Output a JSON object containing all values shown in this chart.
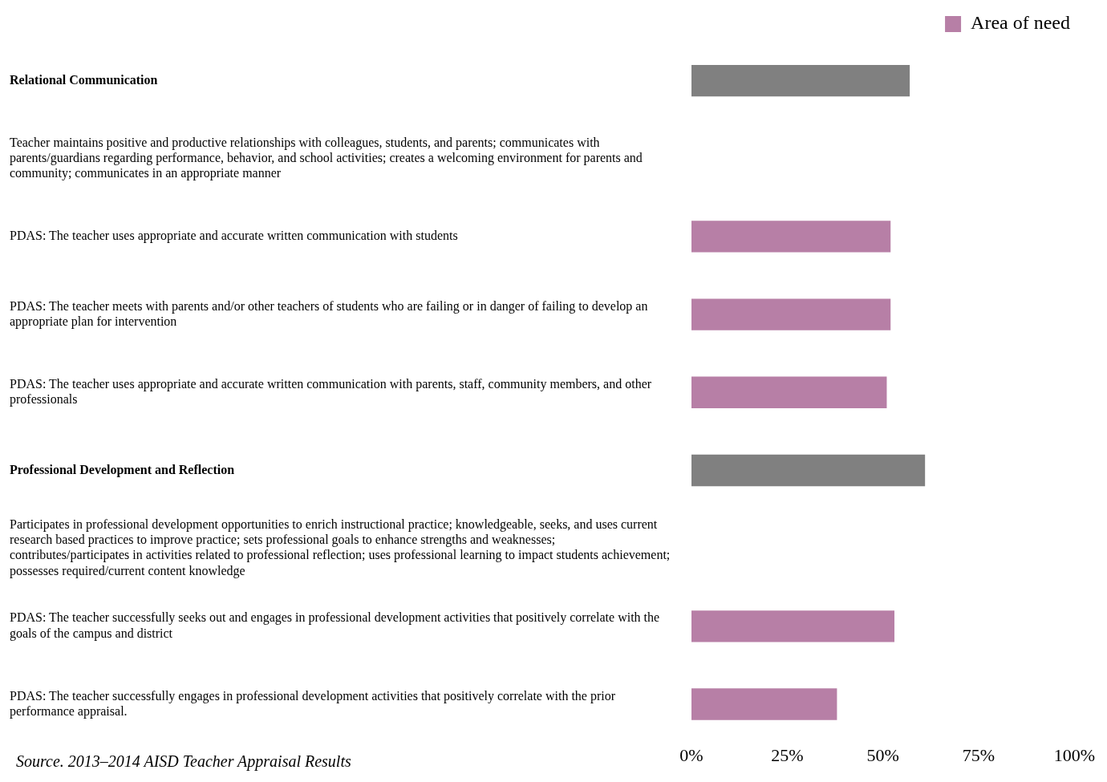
{
  "chart_data": {
    "type": "bar",
    "orientation": "horizontal",
    "stacked": true,
    "categories": [
      "Relational Communication",
      "Teacher maintains positive and productive relationships with colleagues, students, and parents; communicates with parents/guardians regarding performance, behavior, and school activities; creates a welcoming environment for parents and community; communicates in an appropriate manner",
      "PDAS: The teacher uses appropriate and accurate written communication with students",
      "PDAS: The teacher meets with parents and/or other teachers of students who are failing or in danger of failing to develop an appropriate plan for intervention",
      "PDAS: The teacher uses appropriate and accurate written communication with parents, staff, community members, and other professionals",
      "Professional Development and Reflection",
      "Participates in professional development opportunities to enrich instructional practice; knowledgeable, seeks, and uses current research based practices to improve practice; sets professional goals to enhance strengths and weaknesses; contributes/participates in activities related to professional reflection; uses professional learning to impact students achievement; possesses required/current content knowledge",
      "PDAS: The teacher successfully seeks out and engages in professional development activities that positively correlate with the goals of the campus and district",
      "PDAS: The teacher successfully engages in professional development activities that positively correlate with the prior performance appraisal."
    ],
    "series": [
      {
        "color": "#808080",
        "values": [
          57,
          null,
          null,
          null,
          null,
          61,
          null,
          null,
          null
        ]
      },
      {
        "name": "Area of need",
        "color": "#b77fa6",
        "values": [
          null,
          null,
          52,
          52,
          51,
          null,
          null,
          53,
          38
        ]
      }
    ],
    "xlim": [
      0,
      100
    ],
    "xticks": [
      {
        "value": 0,
        "label": "0%"
      },
      {
        "value": 25,
        "label": "25%"
      },
      {
        "value": 50,
        "label": "50%"
      },
      {
        "value": 75,
        "label": "75%"
      },
      {
        "value": 100,
        "label": "100%"
      }
    ],
    "grid": false,
    "legend": "top right",
    "annotations": [
      "Source. 2013–2014 AISD Teacher Appraisal Results"
    ]
  }
}
